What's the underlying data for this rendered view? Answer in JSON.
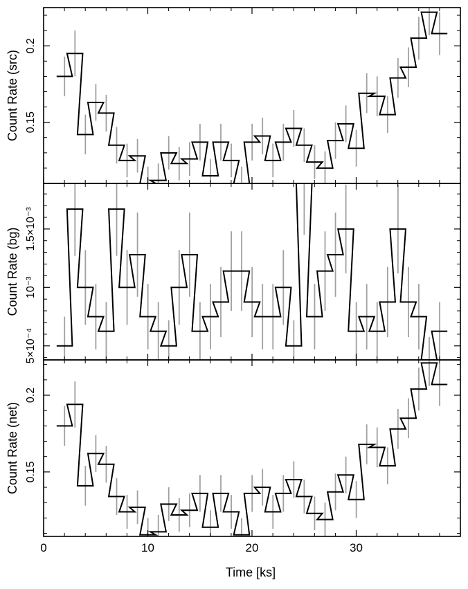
{
  "chart_data": {
    "type": "line",
    "style": "step histogram with vertical error bars",
    "colors": {
      "line": "#000000",
      "error_bars": "#a0a0a0",
      "background": "#ffffff"
    },
    "shared_x": {
      "label": "Time [ks]",
      "range": [
        0,
        40
      ],
      "ticks": [
        0,
        10,
        20,
        30
      ],
      "tick_labels": [
        "0",
        "10",
        "20",
        "30"
      ]
    },
    "panels": [
      {
        "key": "src",
        "ylabel": "Count Rate (src)",
        "yrange": [
          0.11,
          0.225
        ],
        "yticks": [
          0.15,
          0.2
        ],
        "ytick_labels": [
          "0.15",
          "0.2"
        ],
        "x": [
          2,
          3,
          4,
          5,
          6,
          7,
          8,
          9,
          10,
          11,
          12,
          13,
          14,
          15,
          16,
          17,
          18,
          19,
          20,
          21,
          22,
          23,
          24,
          25,
          26,
          27,
          28,
          29,
          30,
          31,
          32,
          33,
          34,
          35,
          36,
          37,
          38
        ],
        "values": [
          0.18,
          0.195,
          0.142,
          0.163,
          0.156,
          0.135,
          0.125,
          0.128,
          0.11,
          0.112,
          0.13,
          0.123,
          0.126,
          0.137,
          0.115,
          0.137,
          0.125,
          0.11,
          0.137,
          0.141,
          0.125,
          0.137,
          0.146,
          0.135,
          0.124,
          0.12,
          0.138,
          0.149,
          0.133,
          0.169,
          0.167,
          0.155,
          0.179,
          0.186,
          0.205,
          0.222,
          0.208
        ],
        "errors": [
          0.013,
          0.015,
          0.013,
          0.012,
          0.012,
          0.012,
          0.011,
          0.011,
          0.011,
          0.011,
          0.011,
          0.011,
          0.011,
          0.012,
          0.011,
          0.012,
          0.011,
          0.011,
          0.012,
          0.012,
          0.011,
          0.012,
          0.012,
          0.011,
          0.011,
          0.011,
          0.012,
          0.012,
          0.012,
          0.013,
          0.013,
          0.012,
          0.013,
          0.013,
          0.014,
          0.015,
          0.014
        ]
      },
      {
        "key": "bg",
        "ylabel": "Count Rate (bg)",
        "yrange": [
          0.00038,
          0.00189
        ],
        "yticks": [
          0.0005,
          0.001,
          0.0015
        ],
        "ytick_labels": [
          "5×10⁻⁴",
          "10⁻³",
          "1.5×10⁻³"
        ],
        "x": [
          2,
          3,
          4,
          5,
          6,
          7,
          8,
          9,
          10,
          11,
          12,
          13,
          14,
          15,
          16,
          17,
          18,
          19,
          20,
          21,
          22,
          23,
          24,
          25,
          26,
          27,
          28,
          29,
          30,
          31,
          32,
          33,
          34,
          35,
          36,
          37,
          38
        ],
        "values": [
          0.0005,
          0.00167,
          0.001,
          0.00075,
          0.000625,
          0.00167,
          0.001,
          0.00128,
          0.00075,
          0.000625,
          0.0005,
          0.001,
          0.00128,
          0.000625,
          0.00075,
          0.000875,
          0.00114,
          0.00114,
          0.000875,
          0.00075,
          0.00075,
          0.001,
          0.0005,
          0.00189,
          0.00075,
          0.00114,
          0.00128,
          0.0015,
          0.000625,
          0.00075,
          0.000625,
          0.000875,
          0.0015,
          0.000875,
          0.00075,
          0.000375,
          0.000625
        ],
        "errors": [
          0.00025,
          0.0004,
          0.00032,
          0.00028,
          0.00025,
          0.0004,
          0.00032,
          0.00036,
          0.00028,
          0.00025,
          0.00022,
          0.00032,
          0.00036,
          0.00025,
          0.00028,
          0.0003,
          0.00034,
          0.00034,
          0.0003,
          0.00028,
          0.00028,
          0.00032,
          0.00022,
          0.00044,
          0.00028,
          0.00034,
          0.00036,
          0.00038,
          0.00025,
          0.00028,
          0.00025,
          0.0003,
          0.00038,
          0.0003,
          0.00028,
          0.0002,
          0.00025
        ]
      },
      {
        "key": "net",
        "ylabel": "Count Rate (net)",
        "yrange": [
          0.108,
          0.223
        ],
        "yticks": [
          0.15,
          0.2
        ],
        "ytick_labels": [
          "0.15",
          "0.2"
        ],
        "x": [
          2,
          3,
          4,
          5,
          6,
          7,
          8,
          9,
          10,
          11,
          12,
          13,
          14,
          15,
          16,
          17,
          18,
          19,
          20,
          21,
          22,
          23,
          24,
          25,
          26,
          27,
          28,
          29,
          30,
          31,
          32,
          33,
          34,
          35,
          36,
          37,
          38
        ],
        "values": [
          0.18,
          0.194,
          0.141,
          0.162,
          0.155,
          0.134,
          0.124,
          0.127,
          0.109,
          0.111,
          0.129,
          0.122,
          0.125,
          0.136,
          0.114,
          0.136,
          0.124,
          0.109,
          0.136,
          0.14,
          0.124,
          0.136,
          0.145,
          0.134,
          0.123,
          0.119,
          0.137,
          0.148,
          0.132,
          0.168,
          0.166,
          0.154,
          0.178,
          0.185,
          0.204,
          0.221,
          0.207
        ],
        "errors": [
          0.013,
          0.015,
          0.013,
          0.012,
          0.012,
          0.012,
          0.011,
          0.011,
          0.011,
          0.011,
          0.011,
          0.011,
          0.011,
          0.012,
          0.011,
          0.012,
          0.011,
          0.011,
          0.012,
          0.012,
          0.011,
          0.012,
          0.012,
          0.011,
          0.011,
          0.011,
          0.012,
          0.012,
          0.012,
          0.013,
          0.013,
          0.012,
          0.013,
          0.013,
          0.014,
          0.015,
          0.014
        ]
      }
    ]
  }
}
